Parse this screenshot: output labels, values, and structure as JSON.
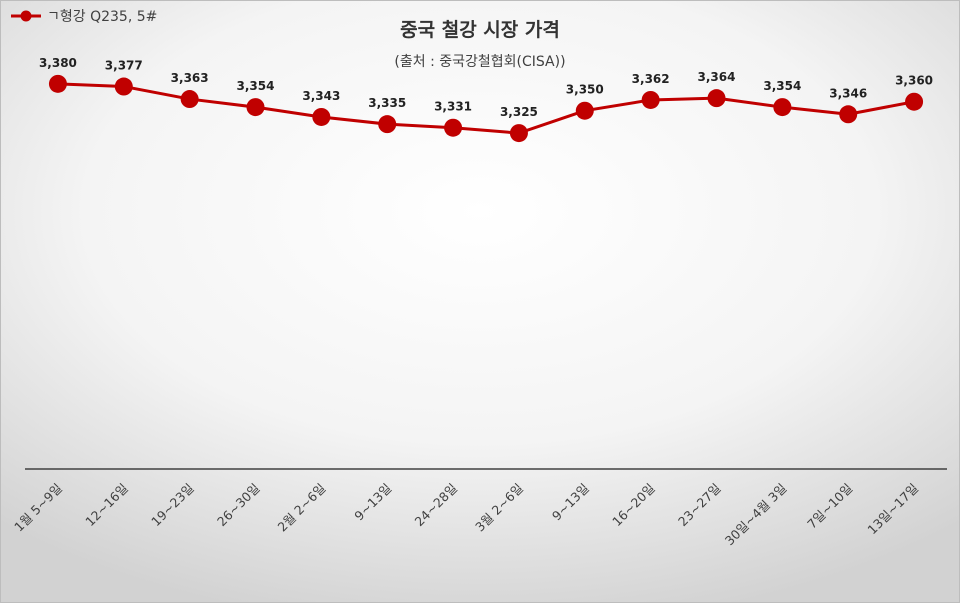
{
  "legend": {
    "label": "ㄱ형강 Q235, 5#"
  },
  "title": "중국 철강 시장 가격",
  "subtitle": "(출처 : 중국강철협회(CISA))",
  "colors": {
    "series": "#C00000",
    "axis": "#404040",
    "text": "#404040"
  },
  "chart_data": {
    "type": "line",
    "title": "중국 철강 시장 가격",
    "subtitle": "(출처 : 중국강철협회(CISA))",
    "categories": [
      "1월 5~9일",
      "12~16일",
      "19~23일",
      "26~30일",
      "2월 2~6일",
      "9~13일",
      "24~28일",
      "3월 2~6일",
      "9~13일",
      "16~20일",
      "23~27일",
      "30일~4월 3일",
      "7일~10일",
      "13일~17일"
    ],
    "series": [
      {
        "name": "ㄱ형강 Q235, 5#",
        "values": [
          3380,
          3377,
          3363,
          3354,
          3343,
          3335,
          3331,
          3325,
          3350,
          3362,
          3364,
          3354,
          3346,
          3360
        ]
      }
    ],
    "data_labels": [
      "3,380",
      "3,377",
      "3,363",
      "3,354",
      "3,343",
      "3,335",
      "3,331",
      "3,325",
      "3,350",
      "3,362",
      "3,364",
      "3,354",
      "3,346",
      "3,360"
    ],
    "ylim": [
      2950,
      3420
    ],
    "grid": false,
    "legend_position": "top-left",
    "xlabel": "",
    "ylabel": ""
  }
}
